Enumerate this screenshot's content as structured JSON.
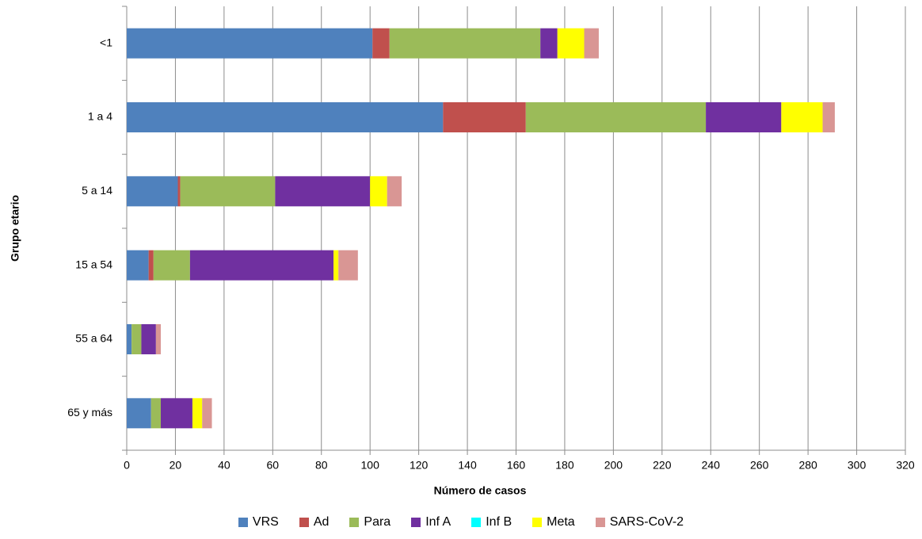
{
  "chart_data": {
    "type": "stacked-barh",
    "xlabel": "Número de casos",
    "ylabel": "Grupo etario",
    "categories": [
      "<1",
      "1 a 4",
      "5 a 14",
      "15 a 54",
      "55 a 64",
      "65 y más"
    ],
    "series": [
      {
        "name": "VRS",
        "color": "#4f81bd",
        "values": [
          101,
          130,
          21,
          9,
          2,
          10
        ]
      },
      {
        "name": "Ad",
        "color": "#c0504d",
        "values": [
          7,
          34,
          1,
          2,
          0,
          0
        ]
      },
      {
        "name": "Para",
        "color": "#9bbb59",
        "values": [
          62,
          74,
          39,
          15,
          4,
          4
        ]
      },
      {
        "name": "Inf A",
        "color": "#7030a0",
        "values": [
          7,
          31,
          39,
          59,
          6,
          13
        ]
      },
      {
        "name": "Inf B",
        "color": "#00ffff",
        "values": [
          0,
          0,
          0,
          0,
          0,
          0
        ]
      },
      {
        "name": "Meta",
        "color": "#ffff00",
        "values": [
          11,
          17,
          7,
          2,
          0,
          4
        ]
      },
      {
        "name": "SARS-CoV-2",
        "color": "#d99694",
        "values": [
          6,
          5,
          6,
          8,
          2,
          4
        ]
      }
    ],
    "xlim": [
      0,
      320
    ],
    "xticks": [
      0,
      20,
      40,
      60,
      80,
      100,
      120,
      140,
      160,
      180,
      200,
      220,
      240,
      260,
      280,
      300,
      320
    ],
    "grid": true,
    "legend": "bottom"
  }
}
